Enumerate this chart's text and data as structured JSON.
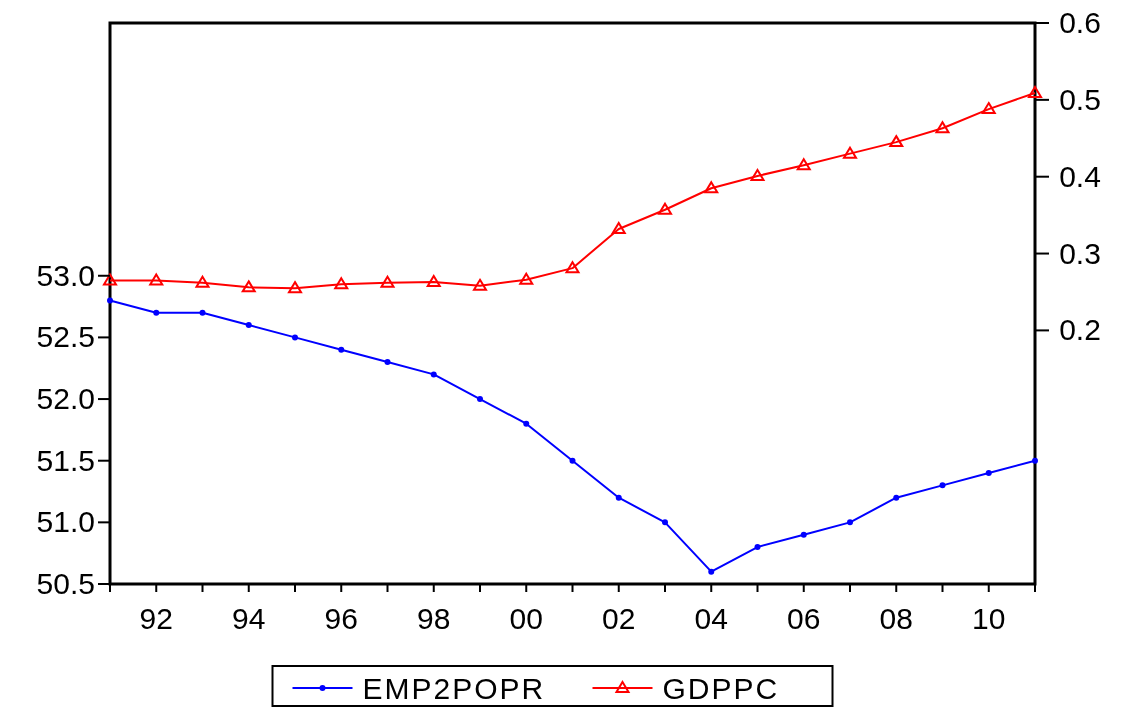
{
  "chart_data": {
    "type": "line",
    "x": [
      1991,
      1992,
      1993,
      1994,
      1995,
      1996,
      1997,
      1998,
      1999,
      2000,
      2001,
      2002,
      2003,
      2004,
      2005,
      2006,
      2007,
      2008,
      2009,
      2010,
      2011
    ],
    "xlim": [
      1991,
      2011
    ],
    "xticks": [
      {
        "value": 1991,
        "label": null
      },
      {
        "value": 1992,
        "label": "92"
      },
      {
        "value": 1993,
        "label": null
      },
      {
        "value": 1994,
        "label": "94"
      },
      {
        "value": 1995,
        "label": null
      },
      {
        "value": 1996,
        "label": "96"
      },
      {
        "value": 1997,
        "label": null
      },
      {
        "value": 1998,
        "label": "98"
      },
      {
        "value": 1999,
        "label": null
      },
      {
        "value": 2000,
        "label": "00"
      },
      {
        "value": 2001,
        "label": null
      },
      {
        "value": 2002,
        "label": "02"
      },
      {
        "value": 2003,
        "label": null
      },
      {
        "value": 2004,
        "label": "04"
      },
      {
        "value": 2005,
        "label": null
      },
      {
        "value": 2006,
        "label": "06"
      },
      {
        "value": 2007,
        "label": null
      },
      {
        "value": 2008,
        "label": "08"
      },
      {
        "value": 2009,
        "label": null
      },
      {
        "value": 2010,
        "label": "10"
      },
      {
        "value": 2011,
        "label": null
      }
    ],
    "ylim": [
      50.5,
      55.05
    ],
    "yticks": [
      {
        "value": 50.5,
        "label": "50.5"
      },
      {
        "value": 51,
        "label": "51.0"
      },
      {
        "value": 51.5,
        "label": "51.5"
      },
      {
        "value": 52,
        "label": "52.0"
      },
      {
        "value": 52.5,
        "label": "52.5"
      },
      {
        "value": 53,
        "label": "53.0"
      }
    ],
    "y2lim": [
      -0.13,
      0.6
    ],
    "y2ticks": [
      0.2,
      0.3,
      0.4,
      0.5,
      0.6
    ],
    "legend": "bottom",
    "grid": false,
    "series": [
      {
        "name": "EMP2POPR",
        "color": "#0000ff",
        "marker": "circle",
        "values": [
          52.8,
          52.7,
          52.7,
          52.6,
          52.5,
          52.4,
          52.3,
          52.2,
          52.0,
          51.8,
          51.5,
          51.2,
          51.0,
          50.6,
          50.8,
          50.9,
          51.0,
          51.2,
          51.3,
          51.4,
          51.5
        ]
      },
      {
        "name": "GDPPC",
        "color": "#ff0000",
        "marker": "triangle",
        "axis": "y2",
        "values": [
          0.265,
          0.265,
          0.262,
          0.256,
          0.255,
          0.26,
          0.262,
          0.263,
          0.258,
          0.266,
          0.281,
          0.332,
          0.357,
          0.385,
          0.401,
          0.415,
          0.43,
          0.445,
          0.463,
          0.488,
          0.509
        ]
      }
    ]
  }
}
